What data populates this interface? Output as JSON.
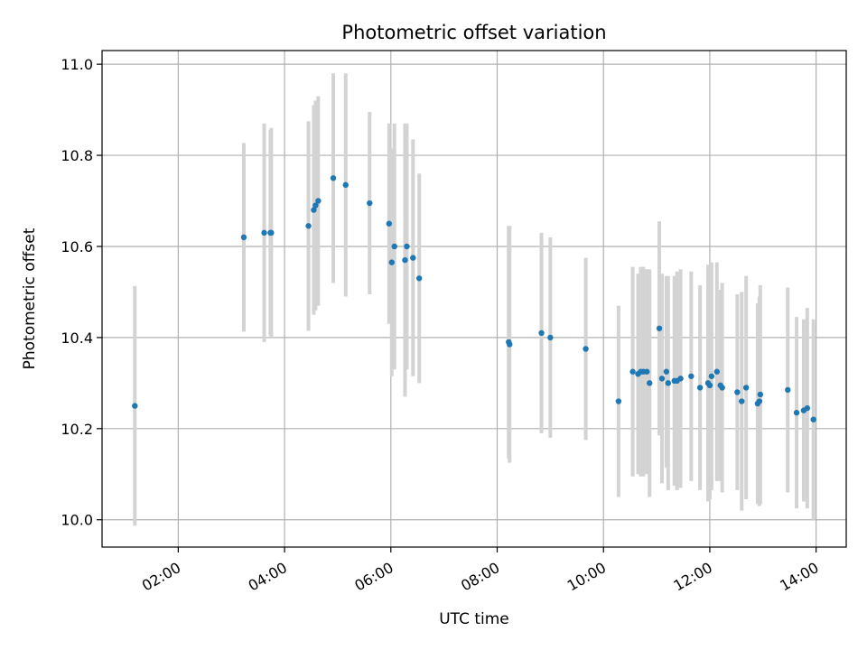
{
  "chart_data": {
    "type": "scatter",
    "title": "Photometric offset variation",
    "xlabel": "UTC time",
    "ylabel": "Photometric offset",
    "xlim": [
      "00:34",
      "14:34"
    ],
    "ylim": [
      9.94,
      11.03
    ],
    "x_ticks": [
      "02:00",
      "04:00",
      "06:00",
      "08:00",
      "10:00",
      "12:00",
      "14:00"
    ],
    "y_ticks": [
      "10.0",
      "10.2",
      "10.4",
      "10.6",
      "10.8",
      "11.0"
    ],
    "grid": true,
    "colors": {
      "point": "#1f77b4",
      "errorbar": "#d3d3d3",
      "grid": "#b0b0b0"
    },
    "series": [
      {
        "x": [
          "01:11",
          "03:14",
          "03:37",
          "03:44",
          "03:45",
          "04:27",
          "04:33",
          "04:35",
          "04:38",
          "04:55",
          "05:09",
          "05:36",
          "05:58",
          "06:01",
          "06:04",
          "06:16",
          "06:18",
          "06:25",
          "06:32",
          "08:13",
          "08:14",
          "08:50",
          "09:00",
          "09:40",
          "10:17",
          "10:33",
          "10:39",
          "10:42",
          "10:45",
          "10:49",
          "10:52",
          "11:03",
          "11:06",
          "11:11",
          "11:13",
          "11:20",
          "11:23",
          "11:27",
          "11:39",
          "11:49",
          "11:58",
          "12:00",
          "12:02",
          "12:08",
          "12:12",
          "12:14",
          "12:31",
          "12:36",
          "12:41",
          "12:54",
          "12:56",
          "12:57",
          "13:28",
          "13:38",
          "13:46",
          "13:50",
          "13:57"
        ],
        "y": [
          10.25,
          10.62,
          10.63,
          10.63,
          10.63,
          10.645,
          10.68,
          10.69,
          10.7,
          10.75,
          10.735,
          10.695,
          10.65,
          10.565,
          10.6,
          10.57,
          10.6,
          10.575,
          10.53,
          10.39,
          10.385,
          10.41,
          10.4,
          10.375,
          10.26,
          10.325,
          10.32,
          10.325,
          10.325,
          10.325,
          10.3,
          10.42,
          10.31,
          10.325,
          10.3,
          10.305,
          10.305,
          10.31,
          10.315,
          10.29,
          10.3,
          10.295,
          10.315,
          10.325,
          10.295,
          10.29,
          10.28,
          10.26,
          10.29,
          10.255,
          10.26,
          10.275,
          10.285,
          10.235,
          10.24,
          10.245,
          10.22
        ],
        "yerr": [
          0.263,
          0.207,
          0.24,
          0.225,
          0.23,
          0.23,
          0.23,
          0.23,
          0.23,
          0.23,
          0.245,
          0.2,
          0.22,
          0.25,
          0.27,
          0.3,
          0.27,
          0.26,
          0.23,
          0.255,
          0.26,
          0.22,
          0.22,
          0.2,
          0.21,
          0.23,
          0.22,
          0.23,
          0.23,
          0.225,
          0.25,
          0.235,
          0.23,
          0.21,
          0.235,
          0.23,
          0.24,
          0.24,
          0.23,
          0.225,
          0.26,
          0.25,
          0.25,
          0.24,
          0.21,
          0.23,
          0.215,
          0.24,
          0.245,
          0.22,
          0.23,
          0.24,
          0.225,
          0.21,
          0.2,
          0.22,
          0.22
        ]
      }
    ]
  }
}
